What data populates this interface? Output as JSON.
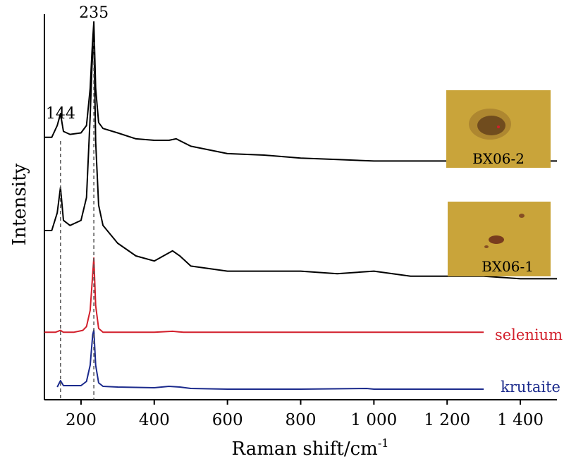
{
  "chart_data": {
    "type": "line",
    "xlabel": "Raman shift/cm",
    "xlabel_superscript": "-1",
    "ylabel": "Intensity",
    "xlim": [
      100,
      1500
    ],
    "x_ticks": [
      {
        "value": 200,
        "label": "200"
      },
      {
        "value": 400,
        "label": "400"
      },
      {
        "value": 600,
        "label": "600"
      },
      {
        "value": 800,
        "label": "800"
      },
      {
        "value": 1000,
        "label": "1 000"
      },
      {
        "value": 1200,
        "label": "1 200"
      },
      {
        "value": 1400,
        "label": "1 400"
      }
    ],
    "y_ticks": "none",
    "grid": false,
    "peak_markers": [
      {
        "x": 144,
        "label": "144"
      },
      {
        "x": 235,
        "label": "235"
      }
    ],
    "series": [
      {
        "name": "BX06-2",
        "color": "#000000",
        "label_position": "inset-image",
        "points": [
          [
            100,
            0.22
          ],
          [
            120,
            0.22
          ],
          [
            135,
            0.3
          ],
          [
            144,
            0.38
          ],
          [
            152,
            0.26
          ],
          [
            170,
            0.24
          ],
          [
            200,
            0.25
          ],
          [
            215,
            0.3
          ],
          [
            225,
            0.55
          ],
          [
            230,
            0.8
          ],
          [
            235,
            1.0
          ],
          [
            240,
            0.55
          ],
          [
            248,
            0.32
          ],
          [
            260,
            0.28
          ],
          [
            300,
            0.25
          ],
          [
            350,
            0.21
          ],
          [
            400,
            0.2
          ],
          [
            440,
            0.2
          ],
          [
            460,
            0.21
          ],
          [
            500,
            0.16
          ],
          [
            600,
            0.11
          ],
          [
            700,
            0.1
          ],
          [
            800,
            0.08
          ],
          [
            900,
            0.07
          ],
          [
            1000,
            0.06
          ],
          [
            1100,
            0.06
          ],
          [
            1200,
            0.06
          ],
          [
            1300,
            0.06
          ],
          [
            1400,
            0.06
          ],
          [
            1500,
            0.06
          ]
        ]
      },
      {
        "name": "BX06-1",
        "color": "#000000",
        "label_position": "inset-image",
        "points": [
          [
            100,
            0.2
          ],
          [
            120,
            0.2
          ],
          [
            135,
            0.27
          ],
          [
            144,
            0.37
          ],
          [
            152,
            0.24
          ],
          [
            170,
            0.22
          ],
          [
            200,
            0.24
          ],
          [
            215,
            0.33
          ],
          [
            225,
            0.65
          ],
          [
            230,
            0.85
          ],
          [
            235,
            0.98
          ],
          [
            240,
            0.55
          ],
          [
            248,
            0.3
          ],
          [
            260,
            0.22
          ],
          [
            300,
            0.15
          ],
          [
            350,
            0.1
          ],
          [
            400,
            0.08
          ],
          [
            450,
            0.12
          ],
          [
            470,
            0.1
          ],
          [
            500,
            0.06
          ],
          [
            600,
            0.04
          ],
          [
            700,
            0.04
          ],
          [
            800,
            0.04
          ],
          [
            900,
            0.03
          ],
          [
            1000,
            0.04
          ],
          [
            1100,
            0.02
          ],
          [
            1200,
            0.02
          ],
          [
            1300,
            0.02
          ],
          [
            1400,
            0.01
          ],
          [
            1500,
            0.01
          ]
        ]
      },
      {
        "name": "selenium",
        "color": "#d21f2b",
        "points": [
          [
            100,
            0.02
          ],
          [
            130,
            0.02
          ],
          [
            144,
            0.04
          ],
          [
            152,
            0.02
          ],
          [
            180,
            0.02
          ],
          [
            205,
            0.04
          ],
          [
            215,
            0.08
          ],
          [
            225,
            0.25
          ],
          [
            235,
            0.8
          ],
          [
            240,
            0.3
          ],
          [
            248,
            0.06
          ],
          [
            260,
            0.02
          ],
          [
            300,
            0.02
          ],
          [
            400,
            0.02
          ],
          [
            450,
            0.03
          ],
          [
            480,
            0.02
          ],
          [
            500,
            0.02
          ],
          [
            700,
            0.02
          ],
          [
            900,
            0.02
          ],
          [
            1100,
            0.02
          ],
          [
            1300,
            0.02
          ]
        ]
      },
      {
        "name": "krutaite",
        "color": "#1b2a8c",
        "points": [
          [
            135,
            0.04
          ],
          [
            144,
            0.13
          ],
          [
            152,
            0.06
          ],
          [
            170,
            0.06
          ],
          [
            200,
            0.06
          ],
          [
            215,
            0.12
          ],
          [
            225,
            0.35
          ],
          [
            232,
            0.78
          ],
          [
            235,
            0.85
          ],
          [
            240,
            0.35
          ],
          [
            248,
            0.1
          ],
          [
            260,
            0.05
          ],
          [
            300,
            0.04
          ],
          [
            400,
            0.03
          ],
          [
            440,
            0.05
          ],
          [
            470,
            0.04
          ],
          [
            500,
            0.02
          ],
          [
            600,
            0.01
          ],
          [
            800,
            0.01
          ],
          [
            980,
            0.02
          ],
          [
            1000,
            0.01
          ],
          [
            1200,
            0.01
          ],
          [
            1300,
            0.01
          ]
        ]
      }
    ],
    "insets": [
      {
        "label": "BX06-2",
        "series": "BX06-2",
        "description": "yellow field with dark brown grain"
      },
      {
        "label": "BX06-1",
        "series": "BX06-1",
        "description": "yellow field with small dark red grains"
      }
    ]
  },
  "colors": {
    "axis": "#000000",
    "dashed_marker": "#555555",
    "inset_background": "#c9a43a",
    "inset_grain": "#5a3a1a"
  }
}
